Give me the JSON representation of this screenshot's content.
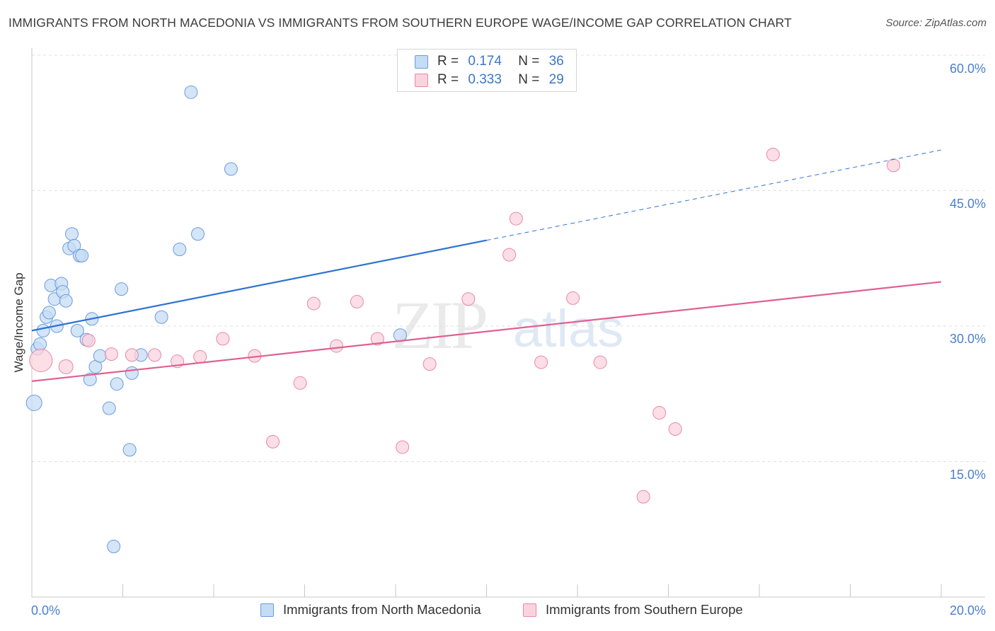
{
  "chart_data": {
    "type": "scatter",
    "title": "IMMIGRANTS FROM NORTH MACEDONIA VS IMMIGRANTS FROM SOUTHERN EUROPE WAGE/INCOME GAP CORRELATION CHART",
    "source": "Source: ZipAtlas.com",
    "watermark_zip": "ZIP",
    "watermark_atlas": "atlas",
    "ylabel": "Wage/Income Gap",
    "xlabel": "",
    "xlim": [
      0,
      20
    ],
    "ylim": [
      0,
      60
    ],
    "y_ticks": [
      {
        "value": 15,
        "label": "15.0%"
      },
      {
        "value": 30,
        "label": "30.0%"
      },
      {
        "value": 45,
        "label": "45.0%"
      },
      {
        "value": 60,
        "label": "60.0%"
      }
    ],
    "x_tick_labels": {
      "min": "0.0%",
      "max": "20.0%"
    },
    "legend": [
      {
        "name": "Immigrants from North Macedonia",
        "r_label": "R =",
        "r_value": "0.174",
        "n_label": "N =",
        "n_value": "36",
        "color": "#9fc4ee",
        "stroke": "#6a9cdb"
      },
      {
        "name": "Immigrants from Southern Europe",
        "r_label": "R =",
        "r_value": "0.333",
        "n_label": "N =",
        "n_value": "29",
        "color": "#f5b8ca",
        "stroke": "#e888a6"
      }
    ],
    "series": [
      {
        "name": "Immigrants from North Macedonia",
        "fill": "#c5dcf5",
        "stroke": "#6a9cdb",
        "trend": {
          "x0": 0,
          "y0": 29.5,
          "x1": 10,
          "y1": 39.5,
          "x_dash_end": 20,
          "y_dash_end": 49.5,
          "color": "#2e72d2"
        },
        "points": [
          [
            0.05,
            21.5,
            11
          ],
          [
            0.12,
            27.5,
            9
          ],
          [
            0.18,
            28.0,
            9
          ],
          [
            0.25,
            29.5,
            9
          ],
          [
            0.32,
            31.0,
            9
          ],
          [
            0.38,
            31.5,
            9
          ],
          [
            0.42,
            34.5,
            9
          ],
          [
            0.5,
            33.0,
            9
          ],
          [
            0.55,
            30.0,
            9
          ],
          [
            0.65,
            34.7,
            9
          ],
          [
            0.68,
            33.8,
            9
          ],
          [
            0.75,
            32.8,
            9
          ],
          [
            0.82,
            38.6,
            9
          ],
          [
            0.88,
            40.2,
            9
          ],
          [
            0.93,
            38.9,
            9
          ],
          [
            1.0,
            29.5,
            9
          ],
          [
            1.05,
            37.8,
            9
          ],
          [
            1.1,
            37.8,
            9
          ],
          [
            1.2,
            28.5,
            9
          ],
          [
            1.28,
            24.1,
            9
          ],
          [
            1.32,
            30.8,
            9
          ],
          [
            1.4,
            25.5,
            9
          ],
          [
            1.5,
            26.7,
            9
          ],
          [
            1.7,
            20.9,
            9
          ],
          [
            1.8,
            5.6,
            9
          ],
          [
            1.87,
            23.6,
            9
          ],
          [
            1.97,
            34.1,
            9
          ],
          [
            2.15,
            16.3,
            9
          ],
          [
            2.2,
            24.8,
            9
          ],
          [
            2.4,
            26.8,
            9
          ],
          [
            2.85,
            31.0,
            9
          ],
          [
            3.25,
            38.5,
            9
          ],
          [
            3.5,
            55.9,
            9
          ],
          [
            3.65,
            40.2,
            9
          ],
          [
            4.38,
            47.4,
            9
          ],
          [
            8.1,
            29.0,
            9
          ]
        ]
      },
      {
        "name": "Immigrants from Southern Europe",
        "fill": "#fbd3de",
        "stroke": "#e888a6",
        "trend": {
          "x0": 0,
          "y0": 23.9,
          "x1": 20,
          "y1": 34.9,
          "color": "#e06090"
        },
        "points": [
          [
            0.2,
            26.2,
            16
          ],
          [
            0.75,
            25.5,
            10
          ],
          [
            1.25,
            28.4,
            9
          ],
          [
            1.75,
            26.9,
            9
          ],
          [
            2.2,
            26.8,
            9
          ],
          [
            2.7,
            26.8,
            9
          ],
          [
            3.2,
            26.1,
            9
          ],
          [
            3.7,
            26.6,
            9
          ],
          [
            4.2,
            28.6,
            9
          ],
          [
            4.9,
            26.7,
            9
          ],
          [
            5.3,
            17.2,
            9
          ],
          [
            5.9,
            23.7,
            9
          ],
          [
            6.2,
            32.5,
            9
          ],
          [
            6.7,
            27.8,
            9
          ],
          [
            7.15,
            32.7,
            9
          ],
          [
            7.6,
            28.6,
            9
          ],
          [
            8.15,
            16.6,
            9
          ],
          [
            8.75,
            25.8,
            9
          ],
          [
            9.6,
            33.0,
            9
          ],
          [
            10.5,
            37.9,
            9
          ],
          [
            10.65,
            41.9,
            9
          ],
          [
            11.2,
            26.0,
            9
          ],
          [
            11.9,
            33.1,
            9
          ],
          [
            12.5,
            26.0,
            9
          ],
          [
            13.45,
            11.1,
            9
          ],
          [
            13.8,
            20.4,
            9
          ],
          [
            14.15,
            18.6,
            9
          ],
          [
            16.3,
            49.0,
            9
          ],
          [
            18.95,
            47.8,
            9
          ]
        ]
      }
    ]
  }
}
